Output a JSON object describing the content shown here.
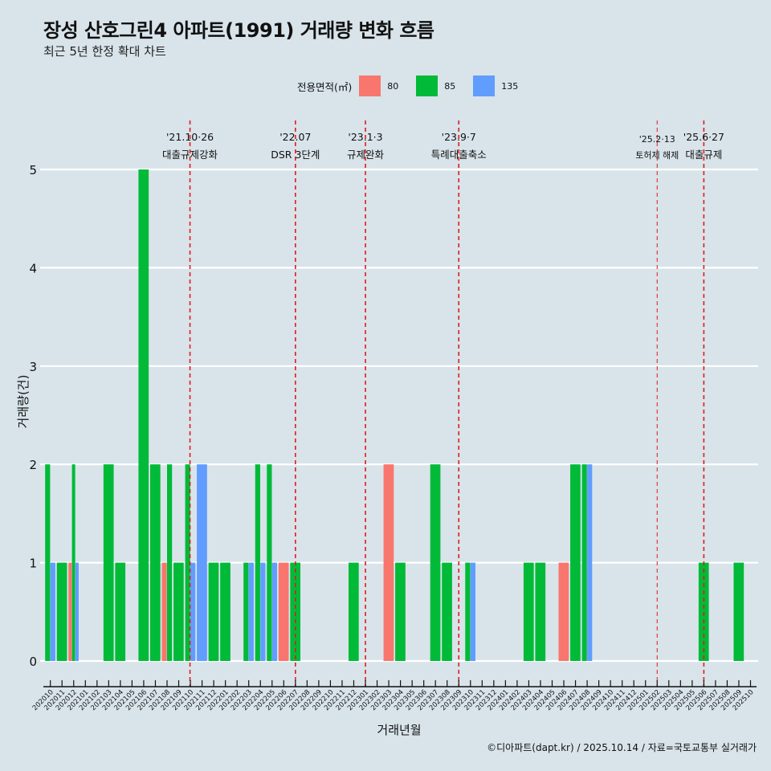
{
  "header": {
    "title": "장성 산호그린4 아파트(1991) 거래량 변화 흐름",
    "subtitle": "최근 5년 한정 확대 차트"
  },
  "legend": {
    "title": "전용면적(㎡)",
    "items": [
      {
        "label": "80",
        "color": "#f8766d"
      },
      {
        "label": "85",
        "color": "#00ba38"
      },
      {
        "label": "135",
        "color": "#619cff"
      }
    ]
  },
  "caption": "©디아파트(dapt.kr) / 2025.10.14 / 자료=국토교통부 실거래가",
  "chart_data": {
    "type": "bar",
    "title": "장성 산호그린4 아파트(1991) 거래량 변화 흐름",
    "subtitle": "최근 5년 한정 확대 차트",
    "xlabel": "거래년월",
    "ylabel": "거래량(건)",
    "ylim": [
      0,
      5
    ],
    "yticks": [
      "0",
      "1",
      "2",
      "3",
      "4",
      "5"
    ],
    "grid": "horizontal",
    "legend_position": "top",
    "categories": [
      "202010",
      "202011",
      "202012",
      "202101",
      "202102",
      "202103",
      "202104",
      "202105",
      "202106",
      "202107",
      "202108",
      "202109",
      "202110",
      "202111",
      "202112",
      "202201",
      "202202",
      "202203",
      "202204",
      "202205",
      "202206",
      "202207",
      "202208",
      "202209",
      "202210",
      "202211",
      "202212",
      "202301",
      "202302",
      "202303",
      "202304",
      "202305",
      "202306",
      "202307",
      "202308",
      "202309",
      "202310",
      "202311",
      "202312",
      "202401",
      "202402",
      "202403",
      "202404",
      "202405",
      "202406",
      "202407",
      "202408",
      "202409",
      "202410",
      "202411",
      "202412",
      "202501",
      "202502",
      "202503",
      "202504",
      "202505",
      "202506",
      "202507",
      "202508",
      "202509",
      "202510"
    ],
    "series": [
      {
        "name": "80",
        "color": "#f8766d",
        "values": {
          "202012": 1,
          "202108": 1,
          "202206": 1,
          "202303": 2,
          "202406": 1
        }
      },
      {
        "name": "85",
        "color": "#00ba38",
        "values": {
          "202010": 2,
          "202011": 1,
          "202012": 2,
          "202103": 2,
          "202104": 1,
          "202106": 5,
          "202107": 2,
          "202108": 2,
          "202109": 1,
          "202110": 2,
          "202112": 1,
          "202201": 1,
          "202203": 1,
          "202204": 2,
          "202205": 2,
          "202207": 1,
          "202212": 1,
          "202304": 1,
          "202307": 2,
          "202308": 1,
          "202310": 1,
          "202403": 1,
          "202404": 1,
          "202407": 2,
          "202408": 2,
          "202506": 1,
          "202509": 1
        }
      },
      {
        "name": "135",
        "color": "#619cff",
        "values": {
          "202010": 1,
          "202012": 1,
          "202110": 1,
          "202111": 2,
          "202203": 1,
          "202204": 1,
          "202205": 1,
          "202310": 1,
          "202408": 2
        }
      }
    ],
    "annotations": [
      {
        "month": "202110",
        "date": "'21.10·26",
        "label": "대출규제강화"
      },
      {
        "month": "202207",
        "date": "'22.07",
        "label": "DSR 3단계"
      },
      {
        "month": "202301",
        "date": "'23.1·3",
        "label": "규제완화"
      },
      {
        "month": "202309",
        "date": "'23.9·7",
        "label": "특례대출축소"
      },
      {
        "month": "202502",
        "date": "'25.2·13",
        "label": "토허제 해제",
        "minor": true
      },
      {
        "month": "202506",
        "date": "'25.6·27",
        "label": "대출규제"
      }
    ]
  }
}
